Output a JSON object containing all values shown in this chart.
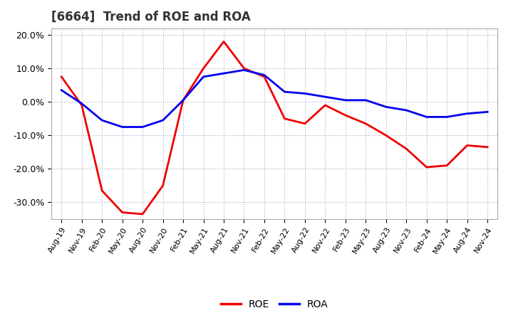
{
  "title": "[6664]  Trend of ROE and ROA",
  "xtick_labels": [
    "Aug-19",
    "Nov-19",
    "Feb-20",
    "May-20",
    "Aug-20",
    "Nov-20",
    "Feb-21",
    "May-21",
    "Aug-21",
    "Nov-21",
    "Feb-22",
    "May-22",
    "Aug-22",
    "Nov-22",
    "Feb-23",
    "May-23",
    "Aug-23",
    "Nov-23",
    "Feb-24",
    "May-24",
    "Aug-24",
    "Nov-24"
  ],
  "roe_values": [
    7.5,
    -1.0,
    -26.5,
    -33.0,
    -33.5,
    -25.0,
    0.5,
    10.0,
    18.0,
    10.0,
    7.5,
    -5.0,
    -6.5,
    -1.0,
    -4.0,
    -6.5,
    -10.0,
    -14.0,
    -19.5,
    -19.0,
    -13.0,
    -13.5
  ],
  "roa_values": [
    3.5,
    -0.5,
    -5.5,
    -7.5,
    -7.5,
    -5.5,
    0.5,
    7.5,
    8.5,
    9.5,
    8.0,
    3.0,
    2.5,
    1.5,
    0.5,
    0.5,
    -1.5,
    -2.5,
    -4.5,
    -4.5,
    -3.5,
    -3.0
  ],
  "roe_color": "#ee0000",
  "roa_color": "#0000ee",
  "ylim": [
    -35,
    22
  ],
  "ytick_values": [
    -30.0,
    -20.0,
    -10.0,
    0.0,
    10.0,
    20.0
  ],
  "ytick_labels": [
    "-30.0%",
    "-20.0%",
    "-10.0%",
    "0.0%",
    "10.0%",
    "20.0%"
  ],
  "background_color": "#ffffff",
  "plot_bg_color": "#ffffff",
  "grid_color": "#aaaacc",
  "legend_labels": [
    "ROE",
    "ROA"
  ],
  "title_fontsize": 12,
  "tick_fontsize": 8,
  "ytick_fontsize": 9
}
